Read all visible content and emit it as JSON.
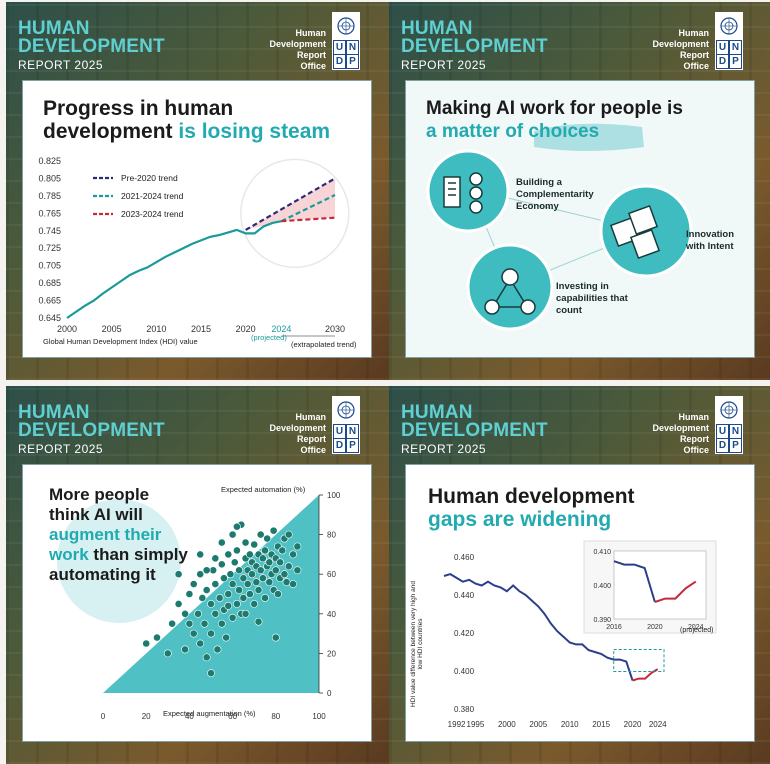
{
  "header": {
    "brand_line1": "HUMAN",
    "brand_line2": "DEVELOPMENT",
    "brand_line3": "REPORT 2025",
    "office_l1": "Human",
    "office_l2": "Development",
    "office_l3": "Report",
    "office_l4": "Office",
    "undp": [
      "U",
      "N",
      "D",
      "P"
    ]
  },
  "panel1": {
    "title_a": "Progress in human",
    "title_b": "development",
    "title_c": "is losing steam",
    "legend": [
      "Pre-2020 trend",
      "2021-2024 trend",
      "2023-2024 trend"
    ],
    "xlabel": "Global Human Development Index (HDI) value",
    "projected": "(projected)",
    "extrapolated": "(extrapolated trend)",
    "chart_data": {
      "type": "line",
      "ylim": [
        0.645,
        0.825
      ],
      "yticks": [
        "0.825",
        "0.805",
        "0.785",
        "0.765",
        "0.745",
        "0.725",
        "0.705",
        "0.685",
        "0.665",
        "0.645"
      ],
      "xticks": [
        "2000",
        "2005",
        "2010",
        "2015",
        "2020",
        "2024",
        "2030"
      ],
      "xlim": [
        2000,
        2030
      ],
      "series": [
        {
          "name": "",
          "color": "#1a9a9a",
          "x": [
            2000,
            2001,
            2002,
            2003,
            2004,
            2005,
            2006,
            2007,
            2008,
            2009,
            2010,
            2011,
            2012,
            2013,
            2014,
            2015,
            2016,
            2017,
            2018,
            2019,
            2020,
            2021,
            2022,
            2023,
            2024
          ],
          "y": [
            0.645,
            0.652,
            0.659,
            0.665,
            0.673,
            0.68,
            0.687,
            0.694,
            0.699,
            0.703,
            0.709,
            0.715,
            0.72,
            0.725,
            0.73,
            0.734,
            0.738,
            0.74,
            0.743,
            0.746,
            0.742,
            0.742,
            0.75,
            0.754,
            0.756
          ]
        },
        {
          "name": "Pre-2020 trend",
          "color": "#2b2a78",
          "dash": true,
          "x": [
            2020,
            2030
          ],
          "y": [
            0.746,
            0.805
          ]
        },
        {
          "name": "2021-2024 trend",
          "color": "#1a9a9a",
          "dash": true,
          "x": [
            2024,
            2030
          ],
          "y": [
            0.756,
            0.786
          ]
        },
        {
          "name": "2023-2024 trend",
          "color": "#c42a3a",
          "dash": true,
          "x": [
            2024,
            2030
          ],
          "y": [
            0.756,
            0.76
          ]
        }
      ]
    }
  },
  "panel2": {
    "title_a": "Making AI work for people is",
    "title_b": "a matter of",
    "title_c": "choices",
    "bubble1": "Building a Complementarity Economy",
    "bubble2": "Innovation with Intent",
    "bubble3": "Investing in capabilities that count",
    "icons": [
      "building-people-icon",
      "puzzle-icon",
      "network-people-icon"
    ]
  },
  "panel3": {
    "title_l1": "More people",
    "title_l2": "think AI will",
    "title_l3": "augment their",
    "title_l4": "work",
    "title_l5": "than simply",
    "title_l6": "automating it",
    "y_axis_label": "Expected automation (%)",
    "x_axis_label": "Expected augmentation (%)",
    "chart_data": {
      "type": "scatter",
      "xlim": [
        0,
        100
      ],
      "ylim": [
        0,
        100
      ],
      "xticks": [
        "0",
        "20",
        "40",
        "60",
        "80",
        "100"
      ],
      "yticks": [
        "100",
        "80",
        "60",
        "40",
        "20",
        "0"
      ],
      "color": "#1d7a6f",
      "points": [
        [
          20,
          25
        ],
        [
          25,
          28
        ],
        [
          30,
          20
        ],
        [
          32,
          35
        ],
        [
          35,
          45
        ],
        [
          35,
          60
        ],
        [
          38,
          40
        ],
        [
          38,
          22
        ],
        [
          40,
          50
        ],
        [
          40,
          35
        ],
        [
          42,
          30
        ],
        [
          42,
          55
        ],
        [
          44,
          40
        ],
        [
          45,
          25
        ],
        [
          45,
          60
        ],
        [
          46,
          48
        ],
        [
          47,
          35
        ],
        [
          48,
          18
        ],
        [
          48,
          52
        ],
        [
          50,
          45
        ],
        [
          50,
          30
        ],
        [
          50,
          10
        ],
        [
          51,
          62
        ],
        [
          52,
          40
        ],
        [
          52,
          55
        ],
        [
          53,
          22
        ],
        [
          54,
          48
        ],
        [
          55,
          35
        ],
        [
          55,
          65
        ],
        [
          56,
          58
        ],
        [
          56,
          42
        ],
        [
          57,
          28
        ],
        [
          58,
          70
        ],
        [
          58,
          50
        ],
        [
          59,
          60
        ],
        [
          60,
          38
        ],
        [
          60,
          55
        ],
        [
          61,
          66
        ],
        [
          62,
          45
        ],
        [
          62,
          72
        ],
        [
          63,
          52
        ],
        [
          63,
          62
        ],
        [
          64,
          85
        ],
        [
          64,
          40
        ],
        [
          65,
          58
        ],
        [
          65,
          48
        ],
        [
          66,
          68
        ],
        [
          66,
          76
        ],
        [
          67,
          55
        ],
        [
          67,
          62
        ],
        [
          68,
          50
        ],
        [
          68,
          70
        ],
        [
          69,
          60
        ],
        [
          69,
          66
        ],
        [
          70,
          45
        ],
        [
          70,
          75
        ],
        [
          71,
          56
        ],
        [
          71,
          64
        ],
        [
          72,
          70
        ],
        [
          72,
          52
        ],
        [
          73,
          62
        ],
        [
          73,
          80
        ],
        [
          74,
          58
        ],
        [
          74,
          68
        ],
        [
          75,
          72
        ],
        [
          75,
          48
        ],
        [
          76,
          64
        ],
        [
          76,
          78
        ],
        [
          77,
          56
        ],
        [
          77,
          66
        ],
        [
          78,
          70
        ],
        [
          78,
          60
        ],
        [
          79,
          82
        ],
        [
          79,
          52
        ],
        [
          80,
          68
        ],
        [
          80,
          62
        ],
        [
          81,
          74
        ],
        [
          81,
          50
        ],
        [
          82,
          58
        ],
        [
          82,
          66
        ],
        [
          83,
          72
        ],
        [
          84,
          60
        ],
        [
          84,
          78
        ],
        [
          85,
          56
        ],
        [
          86,
          64
        ],
        [
          86,
          80
        ],
        [
          88,
          70
        ],
        [
          88,
          55
        ],
        [
          90,
          62
        ],
        [
          90,
          74
        ],
        [
          80,
          28
        ],
        [
          72,
          36
        ],
        [
          60,
          80
        ],
        [
          55,
          76
        ],
        [
          45,
          70
        ],
        [
          62,
          84
        ],
        [
          52,
          68
        ],
        [
          48,
          62
        ],
        [
          58,
          44
        ],
        [
          66,
          40
        ]
      ]
    }
  },
  "panel4": {
    "title_a": "Human development",
    "title_b": "gaps are widening",
    "ylabel": "HDI value difference between very high and low HDI countries",
    "inset_projected": "(projected)",
    "chart_data": {
      "type": "line",
      "ylim": [
        0.38,
        0.46
      ],
      "yticks": [
        "0.460",
        "0.440",
        "0.420",
        "0.400",
        "0.380"
      ],
      "xticks": [
        "1992",
        "1995",
        "2000",
        "2005",
        "2010",
        "2015",
        "2020",
        "2024"
      ],
      "xlim": [
        1990,
        2025
      ],
      "series": [
        {
          "name": "",
          "color": "#2b3f8a",
          "x": [
            1990,
            1991,
            1992,
            1993,
            1994,
            1995,
            1996,
            1997,
            1998,
            1999,
            2000,
            2001,
            2002,
            2003,
            2004,
            2005,
            2006,
            2007,
            2008,
            2009,
            2010,
            2011,
            2012,
            2013,
            2014,
            2015,
            2016,
            2017,
            2018,
            2019,
            2020
          ],
          "y": [
            0.45,
            0.451,
            0.449,
            0.447,
            0.448,
            0.446,
            0.445,
            0.447,
            0.445,
            0.444,
            0.442,
            0.445,
            0.442,
            0.44,
            0.437,
            0.434,
            0.43,
            0.425,
            0.421,
            0.418,
            0.415,
            0.414,
            0.414,
            0.411,
            0.41,
            0.409,
            0.407,
            0.406,
            0.406,
            0.405,
            0.395
          ]
        },
        {
          "name": "",
          "color": "#c42a3a",
          "x": [
            2020,
            2021,
            2022,
            2023,
            2024
          ],
          "y": [
            0.395,
            0.396,
            0.396,
            0.399,
            0.401
          ]
        }
      ],
      "inset": {
        "ylim": [
          0.39,
          0.41
        ],
        "yticks": [
          "0.410",
          "0.400",
          "0.390"
        ],
        "xticks": [
          "2016",
          "2020",
          "2024"
        ],
        "xlim": [
          2016,
          2025
        ]
      }
    }
  }
}
